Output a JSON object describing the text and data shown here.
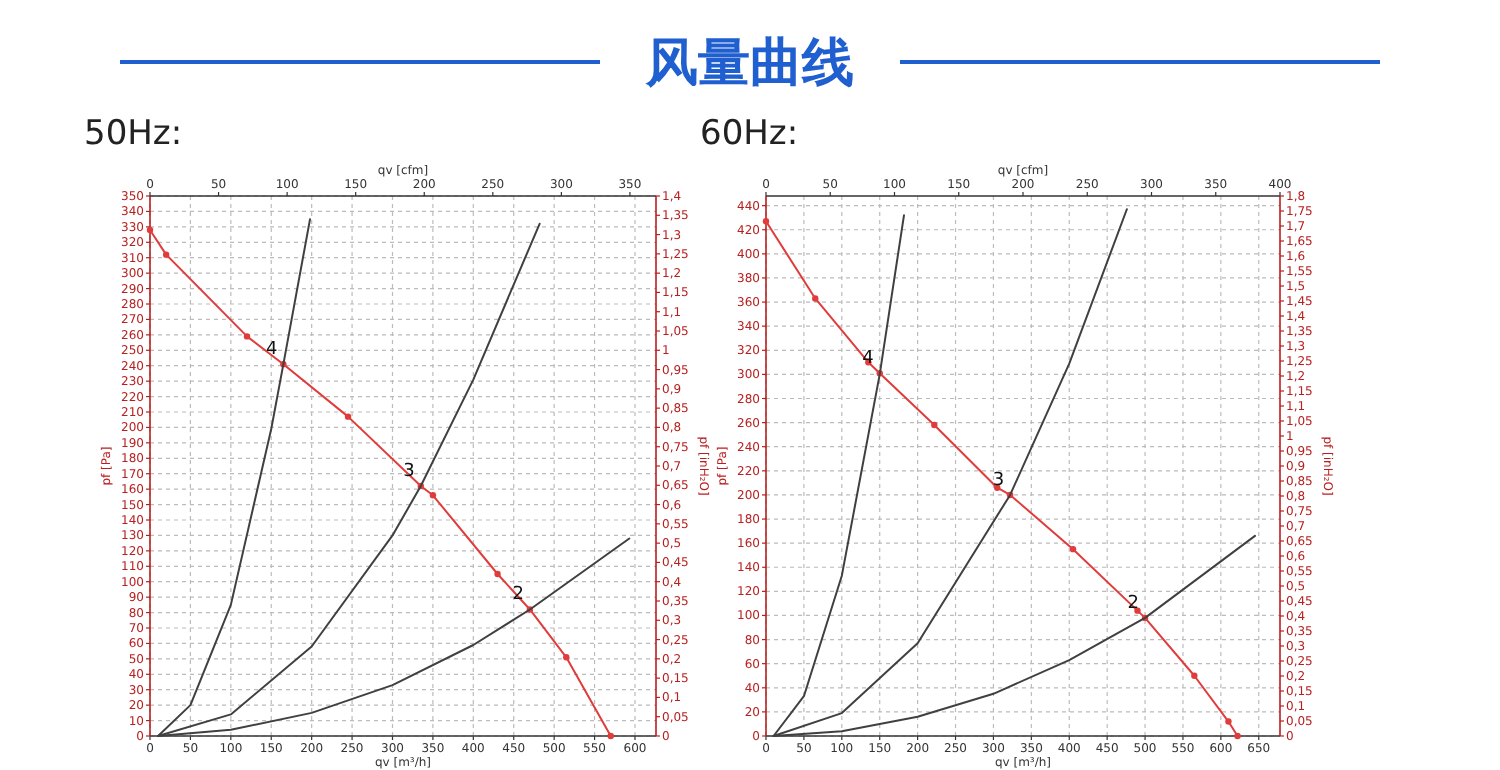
{
  "chart_data": [
    {
      "type": "line",
      "title": "风量曲线",
      "subtitle": "50Hz:",
      "xlabel": "qv [m³/h]",
      "ylabel": "pf [Pa]",
      "y2label": "pf [inH₂O]",
      "x2label": "qv [cfm]",
      "xlim": [
        0,
        626
      ],
      "ylim": [
        0,
        350
      ],
      "y2lim": [
        0,
        1.4
      ],
      "x2lim": [
        0,
        369
      ],
      "xticks": [
        0,
        50,
        100,
        150,
        200,
        250,
        300,
        350,
        400,
        450,
        500,
        550,
        600
      ],
      "x2ticks": [
        0,
        50,
        100,
        150,
        200,
        250,
        300,
        350
      ],
      "yticks": [
        0,
        10,
        20,
        30,
        40,
        50,
        60,
        70,
        80,
        90,
        100,
        110,
        120,
        130,
        140,
        150,
        160,
        170,
        180,
        190,
        200,
        210,
        220,
        230,
        240,
        250,
        260,
        270,
        280,
        290,
        300,
        310,
        320,
        330,
        340,
        350
      ],
      "y2ticks": [
        {
          "value": 0,
          "label": "0"
        },
        {
          "value": 0.05,
          "label": "0,05"
        },
        {
          "value": 0.1,
          "label": "0,1"
        },
        {
          "value": 0.15,
          "label": "0,15"
        },
        {
          "value": 0.2,
          "label": "0,2"
        },
        {
          "value": 0.25,
          "label": "0,25"
        },
        {
          "value": 0.3,
          "label": "0,3"
        },
        {
          "value": 0.35,
          "label": "0,35"
        },
        {
          "value": 0.4,
          "label": "0,4"
        },
        {
          "value": 0.45,
          "label": "0,45"
        },
        {
          "value": 0.5,
          "label": "0,5"
        },
        {
          "value": 0.55,
          "label": "0,55"
        },
        {
          "value": 0.6,
          "label": "0,6"
        },
        {
          "value": 0.65,
          "label": "0,65"
        },
        {
          "value": 0.7,
          "label": "0,7"
        },
        {
          "value": 0.75,
          "label": "0,75"
        },
        {
          "value": 0.8,
          "label": "0,8"
        },
        {
          "value": 0.85,
          "label": "0,85"
        },
        {
          "value": 0.9,
          "label": "0,9"
        },
        {
          "value": 0.95,
          "label": "0,95"
        },
        {
          "value": 1,
          "label": "1"
        },
        {
          "value": 1.05,
          "label": "1,05"
        },
        {
          "value": 1.1,
          "label": "1,1"
        },
        {
          "value": 1.15,
          "label": "1,15"
        },
        {
          "value": 1.2,
          "label": "1,2"
        },
        {
          "value": 1.25,
          "label": "1,25"
        },
        {
          "value": 1.3,
          "label": "1,3"
        },
        {
          "value": 1.35,
          "label": "1,35"
        },
        {
          "value": 1.4,
          "label": "1,4"
        }
      ],
      "grid": true,
      "series": [
        {
          "color": "#e03c3c",
          "marker": "circle",
          "x": [
            0,
            20,
            120,
            165,
            245,
            335,
            350,
            430,
            470,
            515,
            570
          ],
          "values": [
            328,
            312,
            259,
            241,
            207,
            162,
            156,
            105,
            82,
            51,
            0
          ]
        },
        {
          "color": "#404040",
          "marker": "none",
          "x": [
            10,
            50,
            100,
            150,
            165,
            198
          ],
          "values": [
            0,
            20,
            85,
            199,
            241,
            335
          ]
        },
        {
          "color": "#404040",
          "marker": "none",
          "x": [
            10,
            100,
            200,
            300,
            335,
            400,
            482
          ],
          "values": [
            0,
            14,
            58,
            130,
            162,
            231,
            332
          ]
        },
        {
          "color": "#404040",
          "marker": "none",
          "x": [
            10,
            100,
            200,
            300,
            400,
            470,
            593
          ],
          "values": [
            0,
            4,
            15,
            33,
            59,
            82,
            128
          ]
        }
      ],
      "annotations": [
        {
          "text": "4",
          "x": 165,
          "y": 241
        },
        {
          "text": "3",
          "x": 335,
          "y": 162
        },
        {
          "text": "2",
          "x": 470,
          "y": 82
        }
      ]
    },
    {
      "type": "line",
      "subtitle": "60Hz:",
      "xlabel": "qv [m³/h]",
      "ylabel": "pf [Pa]",
      "y2label": "pf [inH₂O]",
      "x2label": "qv [cfm]",
      "xlim": [
        0,
        678
      ],
      "ylim": [
        0,
        448
      ],
      "y2lim": [
        0,
        1.8
      ],
      "x2lim": [
        0,
        400
      ],
      "xticks": [
        0,
        50,
        100,
        150,
        200,
        250,
        300,
        350,
        400,
        450,
        500,
        550,
        600,
        650
      ],
      "x2ticks": [
        0,
        50,
        100,
        150,
        200,
        250,
        300,
        350,
        400
      ],
      "yticks": [
        0,
        20,
        40,
        60,
        80,
        100,
        120,
        140,
        160,
        180,
        200,
        220,
        240,
        260,
        280,
        300,
        320,
        340,
        360,
        380,
        400,
        420,
        440
      ],
      "y2ticks": [
        {
          "value": 0,
          "label": "0"
        },
        {
          "value": 0.05,
          "label": "0,05"
        },
        {
          "value": 0.1,
          "label": "0,1"
        },
        {
          "value": 0.15,
          "label": "0,15"
        },
        {
          "value": 0.2,
          "label": "0,2"
        },
        {
          "value": 0.25,
          "label": "0,25"
        },
        {
          "value": 0.3,
          "label": "0,3"
        },
        {
          "value": 0.35,
          "label": "0,35"
        },
        {
          "value": 0.4,
          "label": "0,4"
        },
        {
          "value": 0.45,
          "label": "0,45"
        },
        {
          "value": 0.5,
          "label": "0,5"
        },
        {
          "value": 0.55,
          "label": "0,55"
        },
        {
          "value": 0.6,
          "label": "0,6"
        },
        {
          "value": 0.65,
          "label": "0,65"
        },
        {
          "value": 0.7,
          "label": "0,7"
        },
        {
          "value": 0.75,
          "label": "0,75"
        },
        {
          "value": 0.8,
          "label": "0,8"
        },
        {
          "value": 0.85,
          "label": "0,85"
        },
        {
          "value": 0.9,
          "label": "0,9"
        },
        {
          "value": 0.95,
          "label": "0,95"
        },
        {
          "value": 1,
          "label": "1"
        },
        {
          "value": 1.05,
          "label": "1,05"
        },
        {
          "value": 1.1,
          "label": "1,1"
        },
        {
          "value": 1.15,
          "label": "1,15"
        },
        {
          "value": 1.2,
          "label": "1,2"
        },
        {
          "value": 1.25,
          "label": "1,25"
        },
        {
          "value": 1.3,
          "label": "1,3"
        },
        {
          "value": 1.35,
          "label": "1,35"
        },
        {
          "value": 1.4,
          "label": "1,4"
        },
        {
          "value": 1.45,
          "label": "1,45"
        },
        {
          "value": 1.5,
          "label": "1,5"
        },
        {
          "value": 1.55,
          "label": "1,55"
        },
        {
          "value": 1.6,
          "label": "1,6"
        },
        {
          "value": 1.65,
          "label": "1,65"
        },
        {
          "value": 1.7,
          "label": "1,7"
        },
        {
          "value": 1.75,
          "label": "1,75"
        },
        {
          "value": 1.8,
          "label": "1,8"
        }
      ],
      "grid": true,
      "series": [
        {
          "color": "#e03c3c",
          "marker": "circle",
          "x": [
            0,
            65,
            135,
            150,
            222,
            305,
            322,
            405,
            490,
            500,
            565,
            610,
            622
          ],
          "values": [
            427,
            363,
            310,
            301,
            258,
            206,
            200,
            155,
            104,
            98,
            50,
            12,
            0
          ]
        },
        {
          "color": "#404040",
          "marker": "none",
          "x": [
            10,
            50,
            100,
            150,
            182
          ],
          "values": [
            0,
            33,
            133,
            300,
            432
          ]
        },
        {
          "color": "#404040",
          "marker": "none",
          "x": [
            10,
            100,
            200,
            322,
            400,
            476
          ],
          "values": [
            0,
            19,
            77,
            200,
            309,
            437
          ]
        },
        {
          "color": "#404040",
          "marker": "none",
          "x": [
            10,
            100,
            200,
            300,
            400,
            500,
            645
          ],
          "values": [
            0,
            4,
            16,
            35,
            63,
            98,
            166
          ]
        }
      ],
      "annotations": [
        {
          "text": "4",
          "x": 150,
          "y": 301
        },
        {
          "text": "3",
          "x": 322,
          "y": 200
        },
        {
          "text": "2",
          "x": 500,
          "y": 98
        }
      ]
    }
  ]
}
